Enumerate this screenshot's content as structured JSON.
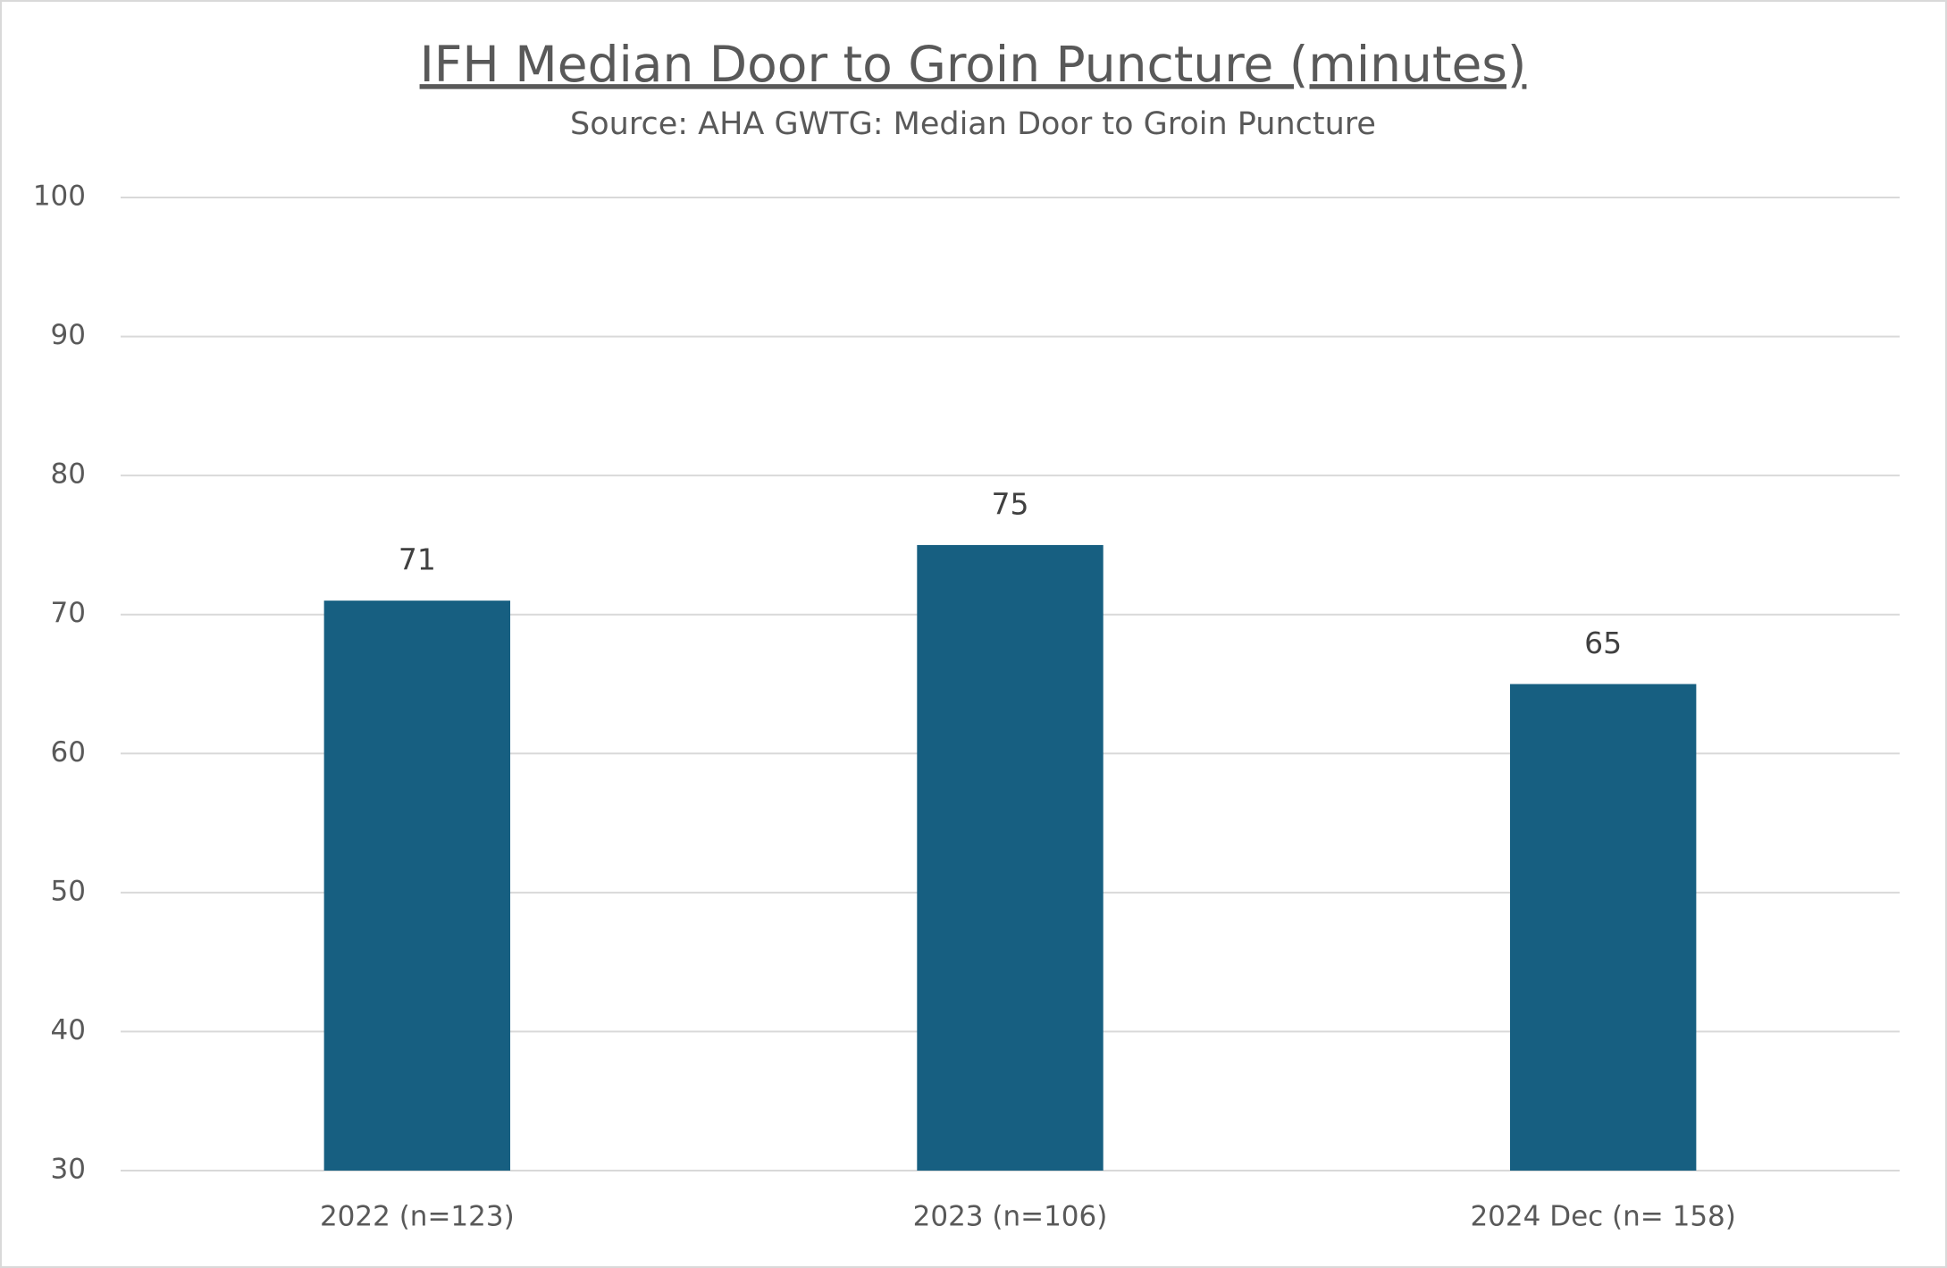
{
  "chart_data": {
    "type": "bar",
    "title": "IFH Median Door to Groin Puncture (minutes)",
    "subtitle": "Source: AHA GWTG: Median Door to Groin Puncture",
    "categories": [
      "2022 (n=123)",
      "2023 (n=106)",
      "2024 Dec (n= 158)"
    ],
    "values": [
      71,
      75,
      65
    ],
    "color": "#175f81",
    "ylim": [
      30,
      100
    ],
    "yticks": [
      30,
      40,
      50,
      60,
      70,
      80,
      90,
      100
    ],
    "grid": true
  }
}
